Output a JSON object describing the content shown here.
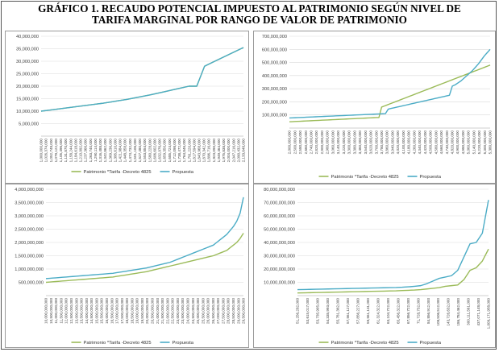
{
  "title_line1": "GRÁFICO 1. RECAUDO POTENCIAL IMPUESTO AL PATRIMONIO SEGÚN NIVEL DE",
  "title_line2": "TARIFA MARGINAL POR RANGO DE VALOR DE PATRIMONIO",
  "colors": {
    "green": "#9bbb59",
    "blue": "#4bacc6",
    "grid": "#d9d9d9"
  },
  "chart_data": [
    {
      "type": "line",
      "yticks": [
        "5,000,000",
        "10,000,000",
        "15,000,000",
        "20,000,000",
        "25,000,000",
        "30,000,000",
        "35,000,000",
        "40,000,000"
      ],
      "ylim": [
        0,
        40000000
      ],
      "xticks": [
        "1,000,000,000",
        "1,026,374,000",
        "1,052,748,000",
        "1,079,122,000",
        "1,105,496,000",
        "1,131,870,000",
        "1,158,244,000",
        "1,184,618,000",
        "1,210,992,000",
        "1,237,366,000",
        "1,263,740,000",
        "1,290,114,000",
        "1,316,488,000",
        "1,342,862,000",
        "1,369,236,000",
        "1,395,610,000",
        "1,421,984,000",
        "1,448,358,000",
        "1,474,732,000",
        "1,501,106,000",
        "1,527,480,000",
        "1,553,854,000",
        "1,580,228,000",
        "1,606,602,000",
        "1,632,976,000",
        "1,659,350,000",
        "1,685,724,000",
        "1,712,098,000",
        "1,738,472,000",
        "1,764,846,000",
        "1,791,220,000",
        "1,817,594,000",
        "1,843,968,000",
        "1,870,342,000",
        "1,896,716,000",
        "1,923,090,000",
        "1,949,464,000",
        "1,975,838,000",
        "2,004,000,000",
        "2,047,216,000",
        "2,090,432,000",
        "2,133,648,000"
      ],
      "series": [
        {
          "name": "Patrimonio *Tarifa -Decreto 4825",
          "color": "#9bbb59",
          "y": [
            10000000,
            10400000,
            10800000,
            11200000,
            11600000,
            12000000,
            12400000,
            12800000,
            13200000,
            13700000,
            14200000,
            14700000,
            15300000,
            15900000,
            16500000,
            17200000,
            17900000,
            18600000,
            19300000,
            20000000,
            20000000,
            28000000,
            29500000,
            31000000,
            32500000,
            34000000,
            35500000
          ]
        },
        {
          "name": "Propuesta",
          "color": "#4bacc6",
          "y": [
            10000000,
            10400000,
            10800000,
            11200000,
            11600000,
            12000000,
            12400000,
            12800000,
            13200000,
            13700000,
            14200000,
            14700000,
            15300000,
            15900000,
            16500000,
            17200000,
            17900000,
            18600000,
            19300000,
            20000000,
            20000000,
            28000000,
            29500000,
            31000000,
            32500000,
            34000000,
            35500000
          ]
        }
      ]
    },
    {
      "type": "line",
      "yticks": [
        "100,000,000",
        "200,000,000",
        "300,000,000",
        "400,000,000",
        "500,000,000",
        "600,000,000",
        "700,000,000"
      ],
      "ylim": [
        0,
        700000000
      ],
      "xticks": [
        "2,000,000,000",
        "2,500,000,000",
        "2,580,000,000",
        "2,660,000,000",
        "2,740,000,000",
        "2,820,000,000",
        "2,900,000,000",
        "2,980,000,000",
        "3,060,000,000",
        "3,140,000,000",
        "3,220,000,000",
        "3,300,000,000",
        "3,380,000,000",
        "3,460,000,000",
        "3,540,000,000",
        "3,620,000,000",
        "3,700,000,000",
        "3,780,000,000",
        "3,860,000,000",
        "3,940,000,000",
        "4,020,000,000",
        "4,100,000,000",
        "4,180,000,000",
        "4,260,000,000",
        "4,340,000,000",
        "4,420,000,000",
        "4,500,000,000",
        "4,580,000,000",
        "4,660,000,000",
        "4,740,000,000",
        "4,820,000,000",
        "4,900,000,000",
        "4,980,000,000",
        "5,060,000,000",
        "5,140,000,000",
        "5,220,000,000",
        "5,300,000,000",
        "5,380,000,000"
      ],
      "series": [
        {
          "name": "Patrimonio *Tarifa -Decreto 4825",
          "color": "#9bbb59",
          "y": [
            48000000,
            49000000,
            50000000,
            51000000,
            52000000,
            53000000,
            54000000,
            55000000,
            56000000,
            57000000,
            58000000,
            59000000,
            60000000,
            61000000,
            62000000,
            63000000,
            64000000,
            65000000,
            66000000,
            67000000,
            68000000,
            69000000,
            70000000,
            71000000,
            72000000,
            73000000,
            74000000,
            75000000,
            76000000,
            77000000,
            78000000,
            79000000,
            80000000,
            80000000,
            160000000,
            168000000,
            176000000,
            184000000,
            192000000,
            200000000,
            208000000,
            216000000,
            224000000,
            232000000,
            240000000,
            248000000,
            256000000,
            264000000,
            272000000,
            280000000,
            288000000,
            296000000,
            304000000,
            312000000,
            320000000,
            328000000,
            336000000,
            344000000,
            352000000,
            360000000,
            368000000,
            376000000,
            384000000,
            392000000,
            400000000,
            408000000,
            416000000,
            424000000,
            432000000,
            440000000,
            448000000,
            456000000,
            464000000,
            472000000,
            480000000
          ]
        },
        {
          "name": "Propuesta",
          "color": "#4bacc6",
          "y": [
            77000000,
            78000000,
            79000000,
            80000000,
            81000000,
            82000000,
            83000000,
            84000000,
            85000000,
            86000000,
            87000000,
            88000000,
            89000000,
            90000000,
            91000000,
            92000000,
            93000000,
            94000000,
            95000000,
            96000000,
            97000000,
            98000000,
            99000000,
            100000000,
            101000000,
            102000000,
            103000000,
            104000000,
            105000000,
            106000000,
            107000000,
            108000000,
            109000000,
            110000000,
            145000000,
            150000000,
            155000000,
            160000000,
            165000000,
            170000000,
            175000000,
            180000000,
            185000000,
            190000000,
            195000000,
            200000000,
            205000000,
            210000000,
            215000000,
            220000000,
            225000000,
            230000000,
            235000000,
            240000000,
            245000000,
            250000000,
            320000000,
            330000000,
            345000000,
            360000000,
            380000000,
            400000000,
            420000000,
            440000000,
            465000000,
            490000000,
            520000000,
            550000000,
            575000000,
            600000000
          ]
        }
      ]
    },
    {
      "type": "line",
      "yticks": [
        "500,000,000",
        "1,000,000,000",
        "1,500,000,000",
        "2,000,000,000",
        "2,500,000,000",
        "3,000,000,000",
        "3,500,000,000",
        "4,000,000,000"
      ],
      "ylim": [
        0,
        4000000000
      ],
      "xticks": [
        "10,000,000,000",
        "10,500,000,000",
        "11,000,000,000",
        "11,500,000,000",
        "12,000,000,000",
        "12,500,000,000",
        "13,000,000,000",
        "13,500,000,000",
        "14,000,000,000",
        "14,500,000,000",
        "15,000,000,000",
        "15,500,000,000",
        "16,000,000,000",
        "16,500,000,000",
        "17,000,000,000",
        "17,500,000,000",
        "18,000,000,000",
        "18,500,000,000",
        "19,000,000,000",
        "19,500,000,000",
        "20,000,000,000",
        "20,500,000,000",
        "21,000,000,000",
        "21,500,000,000",
        "22,000,000,000",
        "22,500,000,000",
        "23,000,000,000",
        "23,500,000,000",
        "24,000,000,000",
        "24,500,000,000",
        "25,000,000,000",
        "25,500,000,000",
        "26,000,000,000",
        "26,500,000,000",
        "27,000,000,000",
        "27,500,000,000",
        "28,000,000,000",
        "28,500,000,000",
        "29,000,000,000",
        "29,500,000,000"
      ],
      "series": [
        {
          "name": "Patrimonio *Tarifa -Decreto 4825",
          "color": "#9bbb59",
          "y": [
            500000000,
            510000000,
            520000000,
            530000000,
            540000000,
            550000000,
            560000000,
            570000000,
            580000000,
            590000000,
            600000000,
            610000000,
            620000000,
            630000000,
            640000000,
            650000000,
            660000000,
            670000000,
            680000000,
            690000000,
            700000000,
            720000000,
            740000000,
            760000000,
            780000000,
            800000000,
            820000000,
            840000000,
            860000000,
            880000000,
            900000000,
            930000000,
            960000000,
            990000000,
            1020000000,
            1050000000,
            1080000000,
            1110000000,
            1140000000,
            1170000000,
            1200000000,
            1230000000,
            1260000000,
            1290000000,
            1320000000,
            1350000000,
            1380000000,
            1410000000,
            1440000000,
            1470000000,
            1500000000,
            1550000000,
            1600000000,
            1650000000,
            1700000000,
            1800000000,
            1900000000,
            2000000000,
            2150000000,
            2350000000
          ]
        },
        {
          "name": "Propuesta",
          "color": "#4bacc6",
          "y": [
            640000000,
            650000000,
            660000000,
            670000000,
            680000000,
            690000000,
            700000000,
            710000000,
            720000000,
            730000000,
            740000000,
            750000000,
            760000000,
            770000000,
            780000000,
            790000000,
            800000000,
            810000000,
            820000000,
            830000000,
            840000000,
            860000000,
            880000000,
            900000000,
            920000000,
            940000000,
            960000000,
            980000000,
            1000000000,
            1020000000,
            1040000000,
            1070000000,
            1100000000,
            1130000000,
            1160000000,
            1190000000,
            1220000000,
            1250000000,
            1300000000,
            1350000000,
            1400000000,
            1450000000,
            1500000000,
            1550000000,
            1600000000,
            1650000000,
            1700000000,
            1750000000,
            1800000000,
            1850000000,
            1900000000,
            2000000000,
            2100000000,
            2200000000,
            2300000000,
            2450000000,
            2600000000,
            2800000000,
            3100000000,
            3700000000
          ]
        }
      ]
    },
    {
      "type": "line",
      "yticks": [
        "10,000,000,000",
        "20,000,000,000",
        "30,000,000,000",
        "40,000,000,000",
        "50,000,000,000",
        "60,000,000,000",
        "70,000,000,000",
        "80,000,000,000"
      ],
      "ylim": [
        0,
        80000000000
      ],
      "xticks": [
        "51,256,282,000",
        "53,615,017,000",
        "53,735,905,000",
        "54,335,993,000",
        "55,781,362,000",
        "57,561,127,000",
        "57,856,227,000",
        "59,561,131,000",
        "61,324,322,000",
        "63,104,722,000",
        "65,456,322,000",
        "67,856,722,000",
        "71,728,732,000",
        "84,856,912,000",
        "108,506,512,000",
        "143,726,632,000",
        "186,784,462,000",
        "300,111,561,000",
        "437,071,148,000",
        "1,009,171,958,000"
      ],
      "series": [
        {
          "name": "Patrimonio *Tarifa -Decreto 4825",
          "color": "#9bbb59",
          "y": [
            2000000000,
            2100000000,
            2200000000,
            2300000000,
            2400000000,
            2500000000,
            2600000000,
            2700000000,
            2800000000,
            2900000000,
            3000000000,
            3100000000,
            3200000000,
            3300000000,
            3400000000,
            3500000000,
            3600000000,
            3800000000,
            4000000000,
            4200000000,
            4500000000,
            5000000000,
            5500000000,
            6000000000,
            7000000000,
            7500000000,
            8000000000,
            12000000000,
            19000000000,
            21000000000,
            26000000000,
            35000000000
          ]
        },
        {
          "name": "Propuesta",
          "color": "#4bacc6",
          "y": [
            4500000000,
            4600000000,
            4700000000,
            4800000000,
            4900000000,
            5000000000,
            5100000000,
            5200000000,
            5300000000,
            5400000000,
            5500000000,
            5600000000,
            5700000000,
            5800000000,
            5900000000,
            6000000000,
            6100000000,
            6300000000,
            6600000000,
            7000000000,
            7500000000,
            9000000000,
            11000000000,
            13000000000,
            14000000000,
            15000000000,
            19000000000,
            29000000000,
            39000000000,
            40000000000,
            47000000000,
            72000000000
          ]
        }
      ]
    }
  ]
}
